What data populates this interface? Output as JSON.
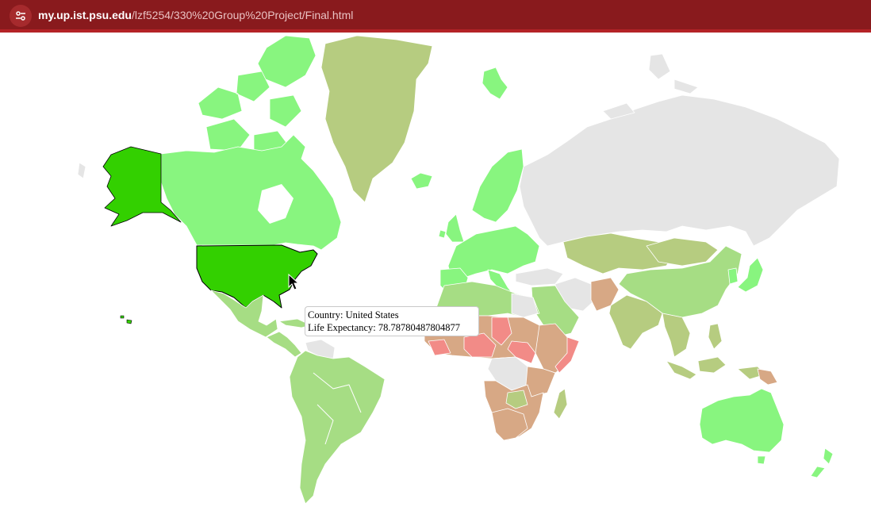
{
  "browser": {
    "url_host": "my.up.ist.psu.edu",
    "url_path": "/lzf5254/330%20Group%20Project/Final.html"
  },
  "tooltip": {
    "country_line": "Country: United States",
    "life_line": "Life Expectancy: 78.78780487804877"
  },
  "map": {
    "highlight": {
      "country": "United States",
      "life_expectancy": 78.78780487804877
    },
    "colors": {
      "highlight": "#33d000",
      "high": "#88f57f",
      "mid_high": "#a6dd84",
      "mid": "#b6cc80",
      "mid_low": "#d7a885",
      "low": "#f28b87",
      "no_data": "#e5e5e5",
      "border": "#ffffff"
    }
  }
}
